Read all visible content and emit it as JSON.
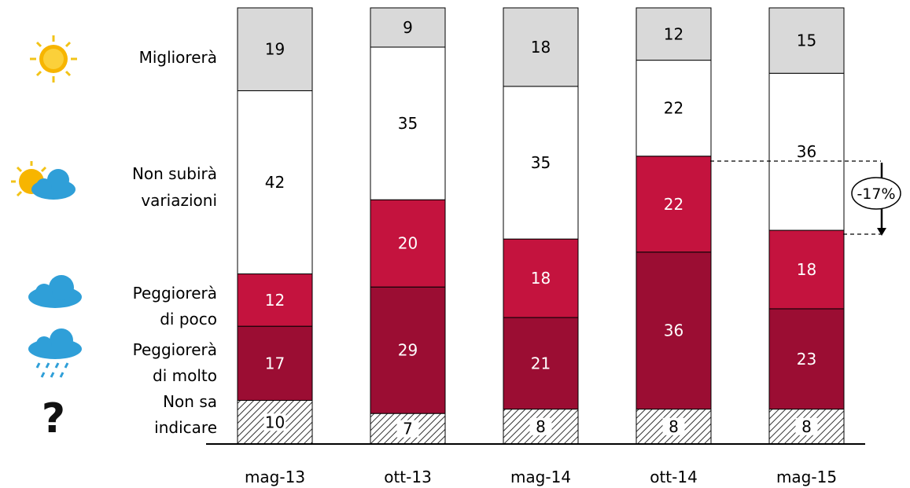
{
  "chart_data": {
    "type": "bar",
    "stacked": true,
    "categories": [
      "mag-13",
      "ott-13",
      "mag-14",
      "ott-14",
      "mag-15"
    ],
    "series": [
      {
        "name": "Non sa indicare",
        "values": [
          10,
          7,
          8,
          8,
          8
        ],
        "color": "#ffffff",
        "pattern": "hatch",
        "text_color": "#000000"
      },
      {
        "name": "Peggiorerà di molto",
        "values": [
          17,
          29,
          21,
          36,
          23
        ],
        "color": "#9b0d33",
        "text_color": "#ffffff"
      },
      {
        "name": "Peggiorerà di poco",
        "values": [
          12,
          20,
          18,
          22,
          18
        ],
        "color": "#c4133e",
        "text_color": "#ffffff"
      },
      {
        "name": "Non subirà variazioni",
        "values": [
          42,
          35,
          35,
          22,
          36
        ],
        "color": "#ffffff",
        "text_color": "#000000"
      },
      {
        "name": "Migliorerà",
        "values": [
          19,
          9,
          18,
          12,
          15
        ],
        "color": "#d9d9d9",
        "text_color": "#000000"
      }
    ],
    "legend": [
      {
        "lines": [
          "Migliorerà"
        ],
        "icon": "sun-icon"
      },
      {
        "lines": [
          "Non subirà",
          "variazioni"
        ],
        "icon": "sun-cloud-icon"
      },
      {
        "lines": [
          "Peggiorerà",
          "di poco"
        ],
        "icon": "cloud-icon"
      },
      {
        "lines": [
          "Peggiorerà",
          "di molto"
        ],
        "icon": "rain-cloud-icon"
      },
      {
        "lines": [
          "Non sa",
          "indicare"
        ],
        "icon": "question-mark-icon"
      }
    ],
    "legend_placement": "left",
    "annotation": {
      "text": "-17%",
      "category": "mag-15"
    },
    "grid": false
  }
}
